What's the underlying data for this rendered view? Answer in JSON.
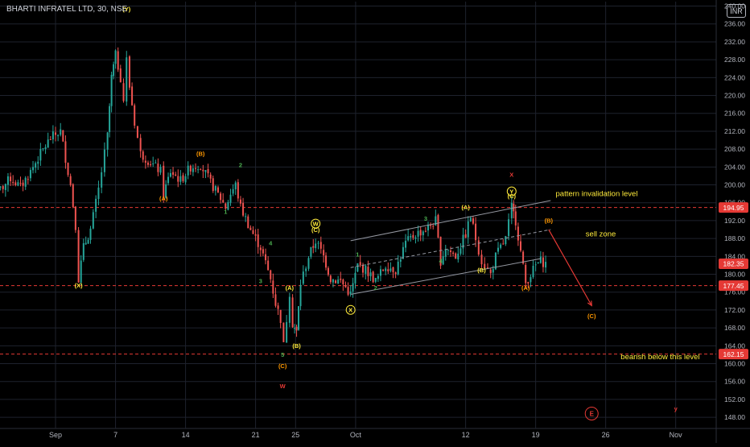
{
  "chart_data": {
    "type": "candlestick",
    "title": "BHARTI INFRATEL LTD, 30, NSE",
    "currency": "INR",
    "ylim": [
      145.5,
      241
    ],
    "y_ticks": [
      "148.00",
      "152.00",
      "156.00",
      "160.00",
      "164.00",
      "168.00",
      "172.00",
      "176.00",
      "180.00",
      "184.00",
      "188.00",
      "192.00",
      "196.00",
      "200.00",
      "204.00",
      "208.00",
      "212.00",
      "216.00",
      "220.00",
      "224.00",
      "228.00",
      "232.00",
      "236.00",
      "240.00"
    ],
    "x_ticks": [
      {
        "label": "Sep",
        "day": 1
      },
      {
        "label": "7",
        "day": 7
      },
      {
        "label": "14",
        "day": 14
      },
      {
        "label": "21",
        "day": 21
      },
      {
        "label": "25",
        "day": 25
      },
      {
        "label": "Oct",
        "day": 31
      },
      {
        "label": "12",
        "day": 42
      },
      {
        "label": "19",
        "day": 49
      },
      {
        "label": "26",
        "day": 56
      },
      {
        "label": "Nov",
        "day": 63
      }
    ],
    "price_levels": [
      {
        "label": "194.95",
        "value": 194.95,
        "line": "#e53935",
        "badge": "#e53935",
        "dashed": true
      },
      {
        "label": "182.35",
        "value": 182.35,
        "line": "",
        "badge": "#e53935",
        "dashed": false
      },
      {
        "label": "177.45",
        "value": 177.45,
        "line": "#e53935",
        "badge": "#e53935",
        "dashed": true
      },
      {
        "label": "162.15",
        "value": 162.15,
        "line": "#e53935",
        "badge": "#e53935",
        "dashed": true
      }
    ],
    "price_path": [
      [
        -5.5,
        197.5
      ],
      [
        -4.5,
        199
      ],
      [
        -3.5,
        201.5
      ],
      [
        -2.5,
        199.5
      ],
      [
        -1.5,
        203
      ],
      [
        -0.5,
        207
      ],
      [
        0.5,
        210.5
      ],
      [
        1.5,
        212
      ],
      [
        2,
        206
      ],
      [
        2.5,
        200
      ],
      [
        3,
        191
      ],
      [
        3.3,
        179
      ],
      [
        3.8,
        186
      ],
      [
        4.5,
        190
      ],
      [
        5.3,
        199
      ],
      [
        6.2,
        211
      ],
      [
        6.6,
        224
      ],
      [
        7,
        229
      ],
      [
        7.5,
        224
      ],
      [
        7.8,
        219
      ],
      [
        8.1,
        228
      ],
      [
        8.4,
        222
      ],
      [
        8.9,
        214
      ],
      [
        9.5,
        207
      ],
      [
        10.5,
        205
      ],
      [
        11.5,
        203
      ],
      [
        11.8,
        198
      ],
      [
        12.5,
        203
      ],
      [
        13.5,
        201
      ],
      [
        14.5,
        204
      ],
      [
        15.5,
        204.5
      ],
      [
        16.5,
        200.5
      ],
      [
        17.5,
        197
      ],
      [
        18,
        195
      ],
      [
        18.5,
        198
      ],
      [
        19,
        200
      ],
      [
        19.5,
        195
      ],
      [
        20.5,
        190
      ],
      [
        21.5,
        186
      ],
      [
        22.5,
        179
      ],
      [
        23,
        173.5
      ],
      [
        23.5,
        170
      ],
      [
        23.8,
        164
      ],
      [
        24.4,
        176
      ],
      [
        24.7,
        169
      ],
      [
        25.1,
        167
      ],
      [
        25.5,
        178
      ],
      [
        26.3,
        184
      ],
      [
        27,
        187.5
      ],
      [
        27.8,
        184
      ],
      [
        28.5,
        179
      ],
      [
        29.5,
        178.5
      ],
      [
        30.5,
        175.5
      ],
      [
        31.2,
        182
      ],
      [
        32,
        181
      ],
      [
        33,
        178.5
      ],
      [
        34,
        182
      ],
      [
        35,
        181
      ],
      [
        36,
        187
      ],
      [
        37,
        189
      ],
      [
        38,
        190
      ],
      [
        39,
        192
      ],
      [
        39.5,
        183
      ],
      [
        40,
        186
      ],
      [
        41,
        184
      ],
      [
        42,
        189
      ],
      [
        42.5,
        193
      ],
      [
        43,
        188
      ],
      [
        43.6,
        183
      ],
      [
        44.5,
        180
      ],
      [
        45,
        184
      ],
      [
        45.5,
        186
      ],
      [
        46,
        188
      ],
      [
        46.6,
        195
      ],
      [
        47,
        192
      ],
      [
        47.5,
        185
      ],
      [
        48,
        178
      ],
      [
        48.5,
        180
      ],
      [
        49,
        182
      ],
      [
        49.5,
        183
      ],
      [
        50,
        182.35
      ]
    ],
    "channel_lines": [
      {
        "from": [
          30.5,
          175.5
        ],
        "to": [
          49.5,
          183.5
        ]
      },
      {
        "from": [
          30.5,
          187.5
        ],
        "to": [
          50.5,
          196.5
        ]
      },
      {
        "from": [
          30.5,
          181.5
        ],
        "to": [
          50.5,
          190
        ],
        "dashed": true
      }
    ],
    "projection": {
      "from": [
        50.3,
        190
      ],
      "to": [
        54.6,
        173
      ]
    },
    "wave_labels": [
      {
        "text": "(Y)",
        "day": 8.1,
        "price": 238.8,
        "color": "#ffeb3b"
      },
      {
        "text": "(X)",
        "day": 3.3,
        "price": 177,
        "color": "#ffeb3b"
      },
      {
        "text": "(A)",
        "day": 11.8,
        "price": 196.5,
        "color": "#ff9800"
      },
      {
        "text": "(B)",
        "day": 15.5,
        "price": 206.5,
        "color": "#ff9800"
      },
      {
        "text": "1",
        "day": 18,
        "price": 193.5,
        "color": "#4caf50"
      },
      {
        "text": "2",
        "day": 19.5,
        "price": 204,
        "color": "#4caf50"
      },
      {
        "text": "3",
        "day": 21.5,
        "price": 178,
        "color": "#4caf50"
      },
      {
        "text": "4",
        "day": 22.5,
        "price": 186.5,
        "color": "#4caf50"
      },
      {
        "text": "5",
        "day": 23.7,
        "price": 161.5,
        "color": "#4caf50"
      },
      {
        "text": "(C)",
        "day": 23.7,
        "price": 159,
        "color": "#ff9800"
      },
      {
        "text": "W",
        "day": 23.7,
        "price": 154.5,
        "color": "#e53935"
      },
      {
        "text": "(A)",
        "day": 24.4,
        "price": 176.5,
        "color": "#ffeb3b"
      },
      {
        "text": "(B)",
        "day": 25.1,
        "price": 163.5,
        "color": "#ffeb3b"
      },
      {
        "text": "W",
        "day": 27,
        "price": 190.8,
        "color": "#ffeb3b",
        "circled": true
      },
      {
        "text": "(C)",
        "day": 27,
        "price": 189.5,
        "color": "#ffeb3b"
      },
      {
        "text": "X",
        "day": 30.5,
        "price": 171.5,
        "color": "#ffeb3b",
        "circled": true
      },
      {
        "text": "1",
        "day": 31.2,
        "price": 184,
        "color": "#4caf50"
      },
      {
        "text": "2",
        "day": 33,
        "price": 176.5,
        "color": "#4caf50"
      },
      {
        "text": "3",
        "day": 38,
        "price": 192,
        "color": "#4caf50"
      },
      {
        "text": "4",
        "day": 39.5,
        "price": 182.5,
        "color": "#4caf50"
      },
      {
        "text": "(A)",
        "day": 42,
        "price": 194.5,
        "color": "#ffeb3b"
      },
      {
        "text": "(B)",
        "day": 43.6,
        "price": 180.5,
        "color": "#ffeb3b"
      },
      {
        "text": "Y",
        "day": 46.6,
        "price": 198,
        "color": "#ffeb3b",
        "circled": true
      },
      {
        "text": "(C)",
        "day": 46.6,
        "price": 197,
        "color": "#ffeb3b"
      },
      {
        "text": "X",
        "day": 46.6,
        "price": 201.8,
        "color": "#e53935"
      },
      {
        "text": "(A)",
        "day": 48,
        "price": 176.5,
        "color": "#ff9800"
      },
      {
        "text": "(B)",
        "day": 50.3,
        "price": 191.5,
        "color": "#ff9800"
      },
      {
        "text": "(C)",
        "day": 54.6,
        "price": 170.2,
        "color": "#ff9800"
      },
      {
        "text": "E",
        "day": 54.6,
        "price": 148.3,
        "color": "#e53935",
        "circled": true
      },
      {
        "text": "y",
        "day": 63,
        "price": 149.5,
        "color": "#e53935"
      }
    ],
    "annotations": [
      {
        "text": "pattern invalidation level",
        "day": 51,
        "price": 197.5,
        "color": "#ffeb3b"
      },
      {
        "text": "sell zone",
        "day": 54,
        "price": 188.5,
        "color": "#ffeb3b"
      },
      {
        "text": "bearish below this level",
        "day": 57.5,
        "price": 161,
        "color": "#ffeb3b"
      }
    ],
    "colors": {
      "up": "#26a69a",
      "down": "#ef5350",
      "grid": "#1e222d",
      "axis_text": "#b2b5be",
      "channel": "#9598a1",
      "projection": "#e53935"
    }
  }
}
